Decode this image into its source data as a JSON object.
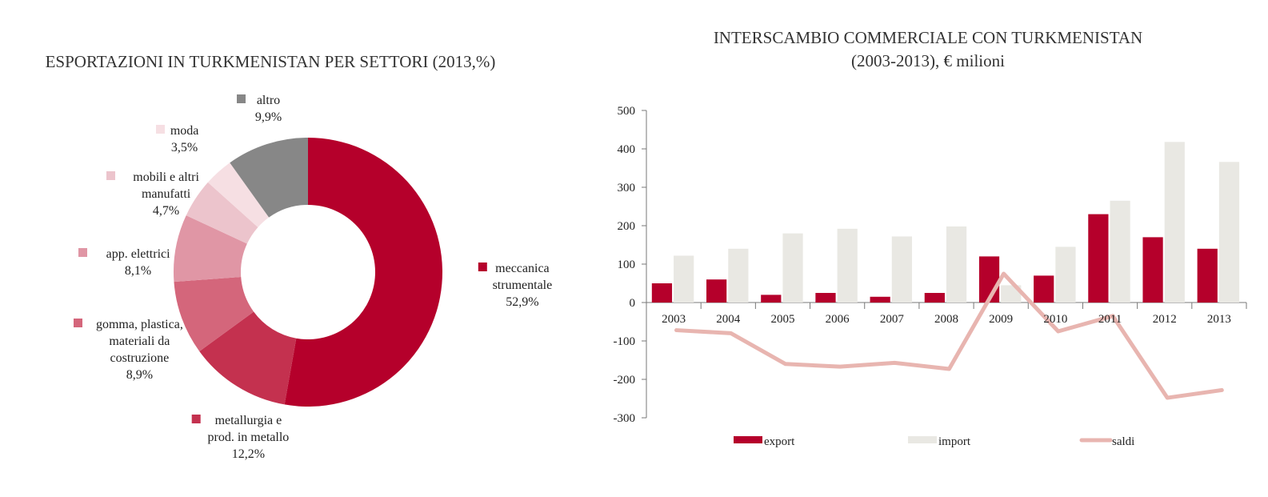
{
  "chart_data": [
    {
      "type": "pie",
      "title": "ESPORTAZIONI IN TURKMENISTAN PER SETTORI (2013,%)",
      "slices": [
        {
          "name": "meccanica strumentale",
          "label_lines": [
            "meccanica",
            "strumentale"
          ],
          "value": 52.9,
          "value_label": "52,9%",
          "color": "#b5002b"
        },
        {
          "name": "metallurgia e prod. in metallo",
          "label_lines": [
            "metallurgia e",
            "prod. in metallo"
          ],
          "value": 12.2,
          "value_label": "12,2%",
          "color": "#c4314f"
        },
        {
          "name": "gomma, plastica, materiali da costruzione",
          "label_lines": [
            "gomma, plastica,",
            "materiali da",
            "costruzione"
          ],
          "value": 8.9,
          "value_label": "8,9%",
          "color": "#d4667b"
        },
        {
          "name": "app. elettrici",
          "label_lines": [
            "app. elettrici"
          ],
          "value": 8.1,
          "value_label": "8,1%",
          "color": "#e096a5"
        },
        {
          "name": "mobili e altri manufatti",
          "label_lines": [
            "mobili e altri",
            "manufatti"
          ],
          "value": 4.7,
          "value_label": "4,7%",
          "color": "#ecc4cc"
        },
        {
          "name": "moda",
          "label_lines": [
            "moda"
          ],
          "value": 3.5,
          "value_label": "3,5%",
          "color": "#f6dfe3"
        },
        {
          "name": "altro",
          "label_lines": [
            "altro"
          ],
          "value": 9.9,
          "value_label": "9,9%",
          "color": "#878787"
        }
      ],
      "donut": true
    },
    {
      "type": "bar",
      "title": [
        "INTERSCAMBIO COMMERCIALE CON TURKMENISTAN",
        "(2003-2013), € milioni"
      ],
      "categories": [
        "2003",
        "2004",
        "2005",
        "2006",
        "2007",
        "2008",
        "2009",
        "2010",
        "2011",
        "2012",
        "2013"
      ],
      "series": [
        {
          "name": "export",
          "type": "bar",
          "color": "#b5002b",
          "values": [
            50,
            60,
            20,
            25,
            15,
            25,
            120,
            70,
            230,
            170,
            140
          ]
        },
        {
          "name": "import",
          "type": "bar",
          "color": "#e9e8e3",
          "values": [
            122,
            140,
            180,
            192,
            172,
            198,
            45,
            145,
            265,
            418,
            366
          ]
        },
        {
          "name": "saldi",
          "type": "line",
          "color": "#e8b5b0",
          "values": [
            -72,
            -80,
            -160,
            -167,
            -157,
            -173,
            75,
            -75,
            -35,
            -248,
            -228
          ]
        }
      ],
      "ylim": [
        -300,
        500
      ],
      "yticks": [
        -300,
        -200,
        -100,
        0,
        100,
        200,
        300,
        400,
        500
      ],
      "legend": "bottom"
    }
  ]
}
